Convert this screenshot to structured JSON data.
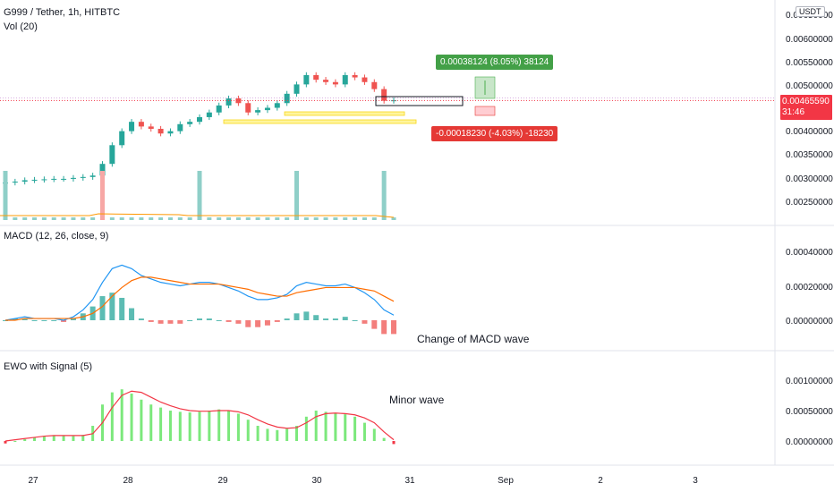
{
  "header": {
    "symbol_title": "G999 / Tether, 1h, HITBTC",
    "volume_label": "Vol (20)",
    "currency_badge": "USDT"
  },
  "price_scale": {
    "ticks": [
      "0.00650000",
      "0.00600000",
      "0.00550000",
      "0.00500000",
      "0.00400000",
      "0.00350000",
      "0.00300000",
      "0.00250000"
    ],
    "current_price": "0.00465590",
    "countdown": "31:46"
  },
  "position_tool": {
    "profit_label": "0.00038124 (8.05%) 38124",
    "loss_label": "-0.00018230 (-4.03%) -18230",
    "profit_color": "#4caf50",
    "loss_color": "#e53935"
  },
  "macd": {
    "label": "MACD (12, 26, close, 9)",
    "ticks": [
      "0.00040000",
      "0.00020000",
      "0.00000000"
    ],
    "annotation": "Change of MACD wave"
  },
  "ewo": {
    "label": "EWO with Signal (5)",
    "ticks": [
      "0.00100000",
      "0.00050000",
      "0.00000000"
    ],
    "annotation": "Minor wave"
  },
  "time_axis": {
    "labels": [
      "27",
      "28",
      "29",
      "30",
      "31",
      "Sep",
      "2",
      "3"
    ]
  },
  "colors": {
    "up": "#26a69a",
    "down": "#ef5350",
    "macd_line": "#2962ff",
    "signal_line": "#ff6d00",
    "ewo_bar": "#7ce87c",
    "ewo_signal": "#f23645"
  },
  "chart_data": [
    {
      "type": "candlestick",
      "title": "G999 / Tether, 1h, HITBTC",
      "x_range": [
        "27",
        "3"
      ],
      "y_range": [
        0.0021,
        0.0066
      ],
      "candles_approx_close": [
        0.0029,
        0.00292,
        0.00295,
        0.00296,
        0.00297,
        0.00298,
        0.00298,
        0.003,
        0.00302,
        0.00305,
        0.0033,
        0.0037,
        0.004,
        0.0042,
        0.0041,
        0.00405,
        0.00395,
        0.004,
        0.00415,
        0.0042,
        0.0043,
        0.0044,
        0.00455,
        0.0047,
        0.0046,
        0.0044,
        0.00445,
        0.0045,
        0.0046,
        0.0048,
        0.005,
        0.0052,
        0.0051,
        0.00505,
        0.005,
        0.0052,
        0.00515,
        0.00505,
        0.0049,
        0.00465,
        0.00466
      ],
      "volume_spikes": [
        {
          "x": "27",
          "value": "high"
        },
        {
          "x": "28",
          "value": "high"
        },
        {
          "x": "29",
          "value": "high"
        },
        {
          "x": "30",
          "value": "high"
        },
        {
          "x": "31",
          "value": "high"
        }
      ],
      "current_price": 0.0046559
    },
    {
      "type": "macd",
      "title": "MACD (12, 26, close, 9)",
      "y_range": [
        -2e-05,
        0.00044
      ],
      "macd_line": [
        0.0,
        1e-05,
        2e-05,
        1e-05,
        1e-05,
        1e-05,
        0.0,
        2e-05,
        6e-05,
        0.00012,
        0.00022,
        0.0003,
        0.00032,
        0.0003,
        0.00026,
        0.00024,
        0.00022,
        0.00021,
        0.0002,
        0.00021,
        0.00022,
        0.00022,
        0.00021,
        0.00019,
        0.00017,
        0.00014,
        0.00012,
        0.00012,
        0.00013,
        0.00015,
        0.0002,
        0.00022,
        0.00021,
        0.0002,
        0.0002,
        0.00021,
        0.00019,
        0.00016,
        0.00012,
        6e-05,
        3e-05
      ],
      "signal_line": [
        0.0,
        0.0,
        1e-05,
        1e-05,
        1e-05,
        1e-05,
        1e-05,
        1e-05,
        2e-05,
        4e-05,
        8e-05,
        0.00014,
        0.00019,
        0.00023,
        0.00025,
        0.00025,
        0.00024,
        0.00023,
        0.00022,
        0.00021,
        0.00021,
        0.00021,
        0.00021,
        0.0002,
        0.00019,
        0.00018,
        0.00016,
        0.00015,
        0.00014,
        0.00014,
        0.00016,
        0.00017,
        0.00018,
        0.00019,
        0.00019,
        0.00019,
        0.00019,
        0.00018,
        0.00017,
        0.00014,
        0.00011
      ]
    },
    {
      "type": "bar",
      "title": "EWO with Signal (5)",
      "y_range": [
        -8e-05,
        0.00115
      ],
      "values": [
        -4e-05,
        0.0,
        3e-05,
        6e-05,
        8e-05,
        9e-05,
        9e-05,
        8e-05,
        0.0001,
        0.00025,
        0.0006,
        0.0008,
        0.00085,
        0.00078,
        0.00068,
        0.0006,
        0.00055,
        0.0005,
        0.00048,
        0.00047,
        0.00048,
        0.0005,
        0.00052,
        0.0005,
        0.00045,
        0.00035,
        0.00025,
        0.0002,
        0.00018,
        0.0002,
        0.00025,
        0.0004,
        0.0005,
        0.00048,
        0.00045,
        0.00044,
        0.0004,
        0.0003,
        0.0002,
        5e-05,
        -5e-05
      ],
      "signal": [
        0.0,
        2e-05,
        4e-05,
        6e-05,
        8e-05,
        9e-05,
        9e-05,
        9e-05,
        9e-05,
        0.00012,
        0.0003,
        0.00055,
        0.00075,
        0.00082,
        0.0008,
        0.00072,
        0.00064,
        0.00058,
        0.00053,
        0.0005,
        0.00049,
        0.00049,
        0.0005,
        0.0005,
        0.00048,
        0.00043,
        0.00035,
        0.00028,
        0.00023,
        0.00021,
        0.00022,
        0.0003,
        0.0004,
        0.00045,
        0.00046,
        0.00045,
        0.00043,
        0.00038,
        0.0003,
        0.00015,
        2e-05
      ]
    }
  ]
}
